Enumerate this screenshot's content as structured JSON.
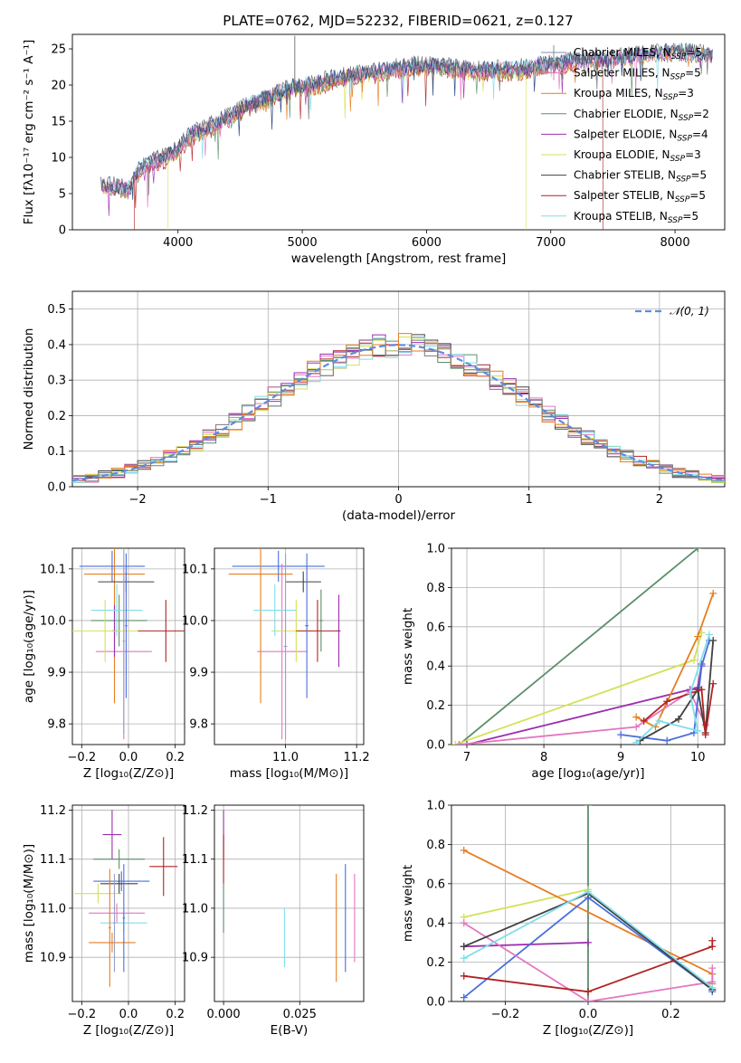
{
  "title": "PLATE=0762, MJD=52232, FIBERID=0621, z=0.127",
  "colors": {
    "Chabrier MILES": "#1f3a7a",
    "Salpeter MILES": "#e377c2",
    "Kroupa MILES": "#e67e22",
    "Chabrier ELODIE": "#5b8f6b",
    "Salpeter ELODIE": "#9b2fae",
    "Kroupa ELODIE": "#d4e157",
    "Chabrier STELIB": "#404040",
    "Salpeter STELIB": "#b22222",
    "Kroupa STELIB": "#80deea"
  },
  "chart_data": [
    {
      "id": "spectrum",
      "type": "line",
      "xlabel": "wavelength [Angstrom, rest frame]",
      "ylabel": "Flux [fλ10⁻¹⁷ erg cm⁻² s⁻¹ A⁻¹]",
      "xlim": [
        3150,
        8400
      ],
      "ylim": [
        0,
        27
      ],
      "xticks": [
        4000,
        5000,
        6000,
        7000,
        8000
      ],
      "yticks": [
        0,
        5,
        10,
        15,
        20,
        25
      ],
      "legend_position": "right",
      "legend": [
        {
          "label": "Chabrier MILES, N",
          "sub": "SSP",
          "tail": "=5",
          "color": "#7f8fa6"
        },
        {
          "label": "Salpeter MILES, N",
          "sub": "SSP",
          "tail": "=5",
          "color": "#e377c2"
        },
        {
          "label": "Kroupa MILES, N",
          "sub": "SSP",
          "tail": "=3",
          "color": "#e67e22"
        },
        {
          "label": "Chabrier ELODIE, N",
          "sub": "SSP",
          "tail": "=2",
          "color": "#5b8f6b"
        },
        {
          "label": "Salpeter ELODIE, N",
          "sub": "SSP",
          "tail": "=4",
          "color": "#9b2fae"
        },
        {
          "label": "Kroupa ELODIE, N",
          "sub": "SSP",
          "tail": "=3",
          "color": "#d4e157"
        },
        {
          "label": "Chabrier STELIB, N",
          "sub": "SSP",
          "tail": "=5",
          "color": "#404040"
        },
        {
          "label": "Salpeter STELIB, N",
          "sub": "SSP",
          "tail": "=5",
          "color": "#b22222"
        },
        {
          "label": "Kroupa STELIB, N",
          "sub": "SSP",
          "tail": "=5",
          "color": "#80deea"
        }
      ],
      "continuum": [
        [
          3400,
          6.0
        ],
        [
          3600,
          5.5
        ],
        [
          3700,
          8.5
        ],
        [
          3900,
          10.0
        ],
        [
          4000,
          11.0
        ],
        [
          4100,
          13.0
        ],
        [
          4300,
          14.5
        ],
        [
          4500,
          16.5
        ],
        [
          4700,
          18.0
        ],
        [
          4900,
          19.5
        ],
        [
          5100,
          20.0
        ],
        [
          5300,
          21.0
        ],
        [
          5500,
          21.5
        ],
        [
          5700,
          22.0
        ],
        [
          5900,
          22.5
        ],
        [
          6100,
          22.5
        ],
        [
          6300,
          22.0
        ],
        [
          6500,
          22.0
        ],
        [
          6700,
          22.0
        ],
        [
          6900,
          22.5
        ],
        [
          7100,
          23.0
        ],
        [
          7300,
          23.5
        ],
        [
          7500,
          23.5
        ],
        [
          7700,
          24.0
        ],
        [
          8000,
          24.5
        ],
        [
          8300,
          24.0
        ]
      ],
      "sharp_drops": [
        {
          "series": "Salpeter STELIB",
          "at": 3650
        },
        {
          "series": "Kroupa ELODIE",
          "at": 3920
        },
        {
          "series": "Kroupa ELODIE",
          "at": 6800
        },
        {
          "series": "Salpeter STELIB",
          "at": 7420
        }
      ]
    },
    {
      "id": "residual-histogram",
      "type": "bar",
      "xlabel": "(data-model)/error",
      "ylabel": "Normed distribution",
      "xlim": [
        -2.5,
        2.5
      ],
      "ylim": [
        0,
        0.55
      ],
      "xticks": [
        -2,
        -1,
        0,
        1,
        2
      ],
      "yticks": [
        0.0,
        0.1,
        0.2,
        0.3,
        0.4,
        0.5
      ],
      "legend_position": "top-right",
      "legend_label": "𝒩(0, 1)",
      "gaussian": {
        "mean": 0,
        "sigma": 1
      },
      "bin_width": 0.1
    },
    {
      "id": "age-vs-Z",
      "type": "scatter",
      "xlabel": "Z [log₁₀(Z/Z⊙)]",
      "ylabel": "age  [log₁₀(age/yr)]",
      "xlim": [
        -0.24,
        0.24
      ],
      "ylim": [
        9.76,
        10.14
      ],
      "xticks": [
        -0.2,
        0.0,
        0.2
      ],
      "yticks": [
        9.8,
        9.9,
        10.0,
        10.1
      ],
      "points": [
        {
          "series": "Chabrier MILES",
          "color": "#4a6fdc",
          "x": -0.07,
          "y": 10.105,
          "xerr": 0.14,
          "yerr": 0.03
        },
        {
          "series": "Salpeter MILES",
          "color": "#e377c2",
          "x": -0.02,
          "y": 9.94,
          "xerr": 0.12,
          "yerr": 0.17
        },
        {
          "series": "Kroupa MILES",
          "color": "#e67e22",
          "x": -0.06,
          "y": 10.09,
          "xerr": 0.13,
          "yerr": 0.25
        },
        {
          "series": "Chabrier ELODIE",
          "color": "#5b8f6b",
          "x": -0.04,
          "y": 10.0,
          "xerr": 0.12,
          "yerr": 0.05
        },
        {
          "series": "Salpeter ELODIE",
          "color": "#9b2fae",
          "x": -0.06,
          "y": 9.98,
          "xerr": 0.01,
          "yerr": 0.05
        },
        {
          "series": "Kroupa ELODIE",
          "color": "#d4e157",
          "x": -0.1,
          "y": 9.98,
          "xerr": 0.14,
          "yerr": 0.06
        },
        {
          "series": "Chabrier STELIB",
          "color": "#404040",
          "x": -0.01,
          "y": 10.075,
          "xerr": 0.12,
          "yerr": 0.02
        },
        {
          "series": "Salpeter STELIB",
          "color": "#b22222",
          "x": 0.16,
          "y": 9.98,
          "xerr": 0.12,
          "yerr": 0.06
        },
        {
          "series": "Kroupa STELIB",
          "color": "#80deea",
          "x": -0.05,
          "y": 10.02,
          "xerr": 0.11,
          "yerr": 0.05
        },
        {
          "series": "Chabrier MILES",
          "color": "#4a6fdc",
          "x": -0.01,
          "y": 9.99,
          "xerr": 0.005,
          "yerr": 0.14
        },
        {
          "series": "Kroupa STELIB",
          "color": "#9aa0c8",
          "x": -0.02,
          "y": 9.96,
          "xerr": 0.005,
          "yerr": 0.18
        }
      ]
    },
    {
      "id": "age-vs-mass",
      "type": "scatter",
      "xlabel": "mass [log₁₀(M/M⊙)]",
      "ylabel": "",
      "xlim": [
        10.8,
        11.22
      ],
      "ylim": [
        9.76,
        10.14
      ],
      "xticks": [
        11.0,
        11.2
      ],
      "yticks": [
        9.8,
        9.9,
        10.0,
        10.1
      ],
      "points": [
        {
          "series": "Chabrier MILES",
          "color": "#4a6fdc",
          "x": 10.98,
          "y": 10.105,
          "xerr": 0.13,
          "yerr": 0.03
        },
        {
          "series": "Salpeter MILES",
          "color": "#e377c2",
          "x": 10.99,
          "y": 9.94,
          "xerr": 0.07,
          "yerr": 0.17
        },
        {
          "series": "Kroupa MILES",
          "color": "#e67e22",
          "x": 10.93,
          "y": 10.09,
          "xerr": 0.09,
          "yerr": 0.25
        },
        {
          "series": "Chabrier ELODIE",
          "color": "#5b8f6b",
          "x": 11.1,
          "y": 10.0,
          "xerr": 0.005,
          "yerr": 0.06
        },
        {
          "series": "Salpeter ELODIE",
          "color": "#9b2fae",
          "x": 11.15,
          "y": 9.98,
          "xerr": 0.005,
          "yerr": 0.07
        },
        {
          "series": "Kroupa ELODIE",
          "color": "#d4e157",
          "x": 11.03,
          "y": 9.98,
          "xerr": 0.07,
          "yerr": 0.06
        },
        {
          "series": "Chabrier STELIB",
          "color": "#404040",
          "x": 11.05,
          "y": 10.075,
          "xerr": 0.05,
          "yerr": 0.02
        },
        {
          "series": "Salpeter STELIB",
          "color": "#b22222",
          "x": 11.09,
          "y": 9.98,
          "xerr": 0.06,
          "yerr": 0.06
        },
        {
          "series": "Kroupa STELIB",
          "color": "#80deea",
          "x": 10.97,
          "y": 10.02,
          "xerr": 0.06,
          "yerr": 0.05
        },
        {
          "series": "Chabrier MILES",
          "color": "#4a6fdc",
          "x": 11.06,
          "y": 9.99,
          "xerr": 0.005,
          "yerr": 0.14
        },
        {
          "series": "Kroupa STELIB",
          "color": "#9aa0c8",
          "x": 11.0,
          "y": 9.95,
          "xerr": 0.005,
          "yerr": 0.18
        }
      ]
    },
    {
      "id": "mass-weight-vs-age",
      "type": "line",
      "xlabel": "age  [log₁₀(age/yr)]",
      "ylabel": "mass weight",
      "xlim": [
        6.8,
        10.35
      ],
      "ylim": [
        0,
        1.0
      ],
      "xticks": [
        7,
        8,
        9,
        10
      ],
      "yticks": [
        0.0,
        0.2,
        0.4,
        0.6,
        0.8,
        1.0
      ],
      "series": [
        {
          "name": "Chabrier ELODIE",
          "color": "#5b8f6b",
          "x": [
            6.9,
            10.0
          ],
          "y": [
            0.0,
            1.0
          ]
        },
        {
          "name": "Kroupa ELODIE",
          "color": "#d4e157",
          "x": [
            6.85,
            9.95,
            10.05
          ],
          "y": [
            0.0,
            0.43,
            0.57
          ]
        },
        {
          "name": "Salpeter ELODIE",
          "color": "#9b2fae",
          "x": [
            7.0,
            9.9,
            10.0,
            10.05
          ],
          "y": [
            0.0,
            0.28,
            0.29,
            0.41
          ]
        },
        {
          "name": "Salpeter MILES",
          "color": "#e377c2",
          "x": [
            6.9,
            9.2,
            9.9,
            10.1
          ],
          "y": [
            0.0,
            0.09,
            0.27,
            0.1
          ]
        },
        {
          "name": "Kroupa MILES",
          "color": "#e67e22",
          "x": [
            9.2,
            9.45,
            10.0,
            10.2
          ],
          "y": [
            0.14,
            0.09,
            0.55,
            0.77
          ]
        },
        {
          "name": "Chabrier MILES",
          "color": "#4a6fdc",
          "x": [
            9.0,
            9.6,
            9.95,
            10.05,
            10.15
          ],
          "y": [
            0.05,
            0.02,
            0.06,
            0.4,
            0.53
          ]
        },
        {
          "name": "Chabrier STELIB",
          "color": "#404040",
          "x": [
            9.25,
            9.75,
            10.0,
            10.1,
            10.2
          ],
          "y": [
            0.02,
            0.13,
            0.28,
            0.06,
            0.53
          ]
        },
        {
          "name": "Salpeter STELIB",
          "color": "#b22222",
          "x": [
            9.3,
            9.6,
            10.05,
            10.1,
            10.2
          ],
          "y": [
            0.12,
            0.22,
            0.28,
            0.05,
            0.31
          ]
        },
        {
          "name": "Kroupa STELIB",
          "color": "#80deea",
          "x": [
            9.2,
            9.5,
            10.0,
            9.9,
            10.15
          ],
          "y": [
            0.01,
            0.12,
            0.07,
            0.26,
            0.56
          ]
        }
      ]
    },
    {
      "id": "mass-vs-Z",
      "type": "scatter",
      "xlabel": "Z [log₁₀(Z/Z⊙)]",
      "ylabel": "mass [log₁₀(M/M⊙)]",
      "xlim": [
        -0.24,
        0.24
      ],
      "ylim": [
        10.81,
        11.21
      ],
      "xticks": [
        -0.2,
        0.0,
        0.2
      ],
      "yticks": [
        10.9,
        11.0,
        11.1,
        11.2
      ],
      "points": [
        {
          "series": "Chabrier MILES",
          "color": "#4a6fdc",
          "x": -0.03,
          "y": 11.055,
          "xerr": 0.12,
          "yerr": 0.02
        },
        {
          "series": "Salpeter MILES",
          "color": "#e377c2",
          "x": -0.05,
          "y": 10.99,
          "xerr": 0.12,
          "yerr": 0.02
        },
        {
          "series": "Kroupa MILES",
          "color": "#e67e22",
          "x": -0.07,
          "y": 10.93,
          "xerr": 0.1,
          "yerr": 0.02
        },
        {
          "series": "Chabrier ELODIE",
          "color": "#5b8f6b",
          "x": -0.04,
          "y": 11.1,
          "xerr": 0.11,
          "yerr": 0.02
        },
        {
          "series": "Salpeter ELODIE",
          "color": "#9b2fae",
          "x": -0.07,
          "y": 11.15,
          "xerr": 0.04,
          "yerr": 0.05
        },
        {
          "series": "Kroupa ELODIE",
          "color": "#d4e157",
          "x": -0.13,
          "y": 11.03,
          "xerr": 0.1,
          "yerr": 0.02
        },
        {
          "series": "Chabrier STELIB",
          "color": "#404040",
          "x": -0.04,
          "y": 11.05,
          "xerr": 0.08,
          "yerr": 0.02
        },
        {
          "series": "Salpeter STELIB",
          "color": "#b22222",
          "x": 0.15,
          "y": 11.085,
          "xerr": 0.06,
          "yerr": 0.06
        },
        {
          "series": "Kroupa STELIB",
          "color": "#80deea",
          "x": -0.02,
          "y": 10.97,
          "xerr": 0.1,
          "yerr": 0.02
        },
        {
          "series": "Kroupa MILES",
          "color": "#e67e22",
          "x": -0.08,
          "y": 10.96,
          "xerr": 0.005,
          "yerr": 0.12
        },
        {
          "series": "Chabrier MILES",
          "color": "#4a6fdc",
          "x": -0.02,
          "y": 10.98,
          "xerr": 0.005,
          "yerr": 0.11
        },
        {
          "series": "Salpeter MILES",
          "color": "#9aa0c8",
          "x": -0.06,
          "y": 10.97,
          "xerr": 0.005,
          "yerr": 0.1
        }
      ]
    },
    {
      "id": "mass-vs-ebv",
      "type": "scatter",
      "xlabel": "E(B-V)",
      "ylabel": "",
      "xlim": [
        -0.003,
        0.046
      ],
      "ylim": [
        10.81,
        11.21
      ],
      "xticks": [
        0.0,
        0.025
      ],
      "xtick_labels": [
        "0.000",
        "0.025"
      ],
      "yticks": [
        10.9,
        11.0,
        11.1,
        11.2
      ],
      "points": [
        {
          "series": "Salpeter ELODIE",
          "color": "#9b2fae",
          "x": 0.0,
          "y": 11.15,
          "xerr": 0,
          "yerr": 0.05
        },
        {
          "series": "Salpeter STELIB",
          "color": "#b22222",
          "x": 0.0,
          "y": 11.1,
          "xerr": 0,
          "yerr": 0.05
        },
        {
          "series": "Chabrier ELODIE",
          "color": "#5b8f6b",
          "x": 0.0,
          "y": 11.0,
          "xerr": 0,
          "yerr": 0.05
        },
        {
          "series": "Kroupa STELIB",
          "color": "#80deea",
          "x": 0.02,
          "y": 10.94,
          "xerr": 0,
          "yerr": 0.06
        },
        {
          "series": "Kroupa MILES",
          "color": "#e67e22",
          "x": 0.037,
          "y": 10.96,
          "xerr": 0,
          "yerr": 0.11
        },
        {
          "series": "Chabrier MILES",
          "color": "#4a6fdc",
          "x": 0.04,
          "y": 10.98,
          "xerr": 0,
          "yerr": 0.11
        },
        {
          "series": "Salpeter MILES",
          "color": "#e377c2",
          "x": 0.043,
          "y": 10.98,
          "xerr": 0,
          "yerr": 0.09
        }
      ]
    },
    {
      "id": "mass-weight-vs-Z",
      "type": "line",
      "xlabel": "Z [log₁₀(Z/Z⊙)]",
      "ylabel": "mass weight",
      "xlim": [
        -0.33,
        0.33
      ],
      "ylim": [
        0,
        1.0
      ],
      "xticks": [
        -0.2,
        0.0,
        0.2
      ],
      "yticks": [
        0.0,
        0.2,
        0.4,
        0.6,
        0.8,
        1.0
      ],
      "series": [
        {
          "name": "Chabrier ELODIE",
          "color": "#5b8f6b",
          "x": [
            0.0,
            0.0
          ],
          "y": [
            0.0,
            1.0
          ]
        },
        {
          "name": "Kroupa ELODIE",
          "color": "#d4e157",
          "x": [
            -0.3,
            0.0
          ],
          "y": [
            0.43,
            0.57
          ]
        },
        {
          "name": "Salpeter ELODIE",
          "color": "#9b2fae",
          "x": [
            -0.3,
            0.0
          ],
          "y": [
            0.28,
            0.3
          ]
        },
        {
          "name": "Kroupa MILES",
          "color": "#e67e22",
          "x": [
            -0.3,
            0.3,
            0.3
          ],
          "y": [
            0.77,
            0.14,
            0.09
          ]
        },
        {
          "name": "Chabrier MILES",
          "color": "#4a6fdc",
          "x": [
            -0.3,
            0.0,
            0.3,
            0.3
          ],
          "y": [
            0.02,
            0.53,
            0.06,
            0.05
          ]
        },
        {
          "name": "Salpeter MILES",
          "color": "#e377c2",
          "x": [
            -0.3,
            0.0,
            0.3,
            0.3
          ],
          "y": [
            0.4,
            0.0,
            0.1,
            0.17
          ]
        },
        {
          "name": "Chabrier STELIB",
          "color": "#404040",
          "x": [
            -0.3,
            0.0,
            0.3
          ],
          "y": [
            0.28,
            0.55,
            0.06
          ]
        },
        {
          "name": "Salpeter STELIB",
          "color": "#b22222",
          "x": [
            -0.3,
            0.0,
            0.3,
            0.3
          ],
          "y": [
            0.13,
            0.05,
            0.28,
            0.31
          ]
        },
        {
          "name": "Kroupa STELIB",
          "color": "#80deea",
          "x": [
            -0.3,
            0.0,
            0.3
          ],
          "y": [
            0.22,
            0.56,
            0.07
          ]
        }
      ]
    }
  ]
}
